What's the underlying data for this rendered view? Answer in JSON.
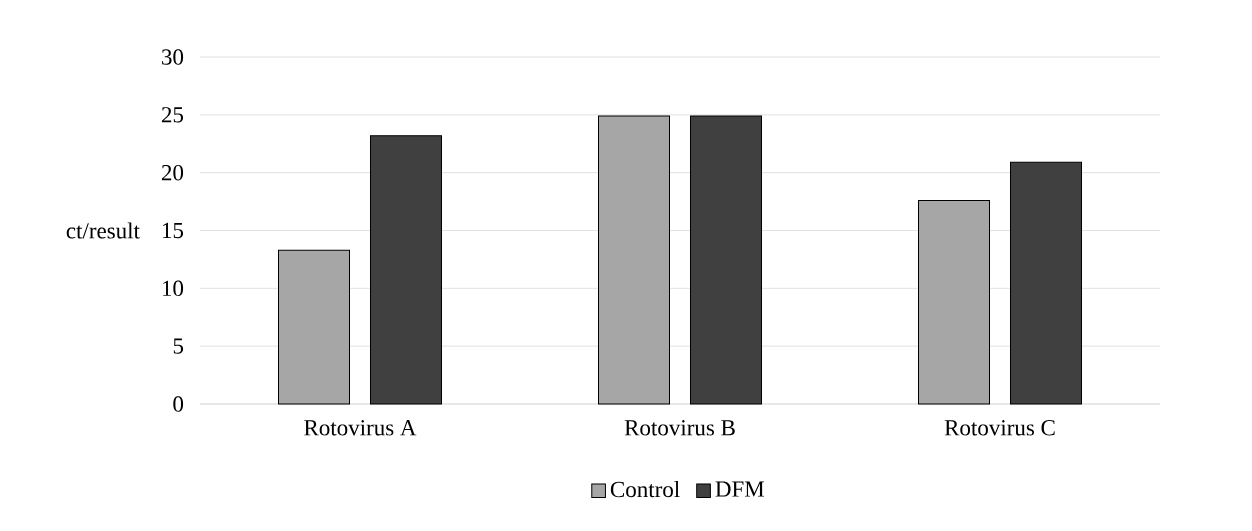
{
  "chart_data": {
    "type": "bar",
    "ylabel": "ct/result",
    "categories": [
      "Rotovirus A",
      "Rotovirus B",
      "Rotovirus C"
    ],
    "series": [
      {
        "name": "Control",
        "color": "#a6a6a6",
        "values": [
          13.3,
          24.9,
          17.6
        ]
      },
      {
        "name": "DFM",
        "color": "#404040",
        "values": [
          23.2,
          24.9,
          20.9
        ]
      }
    ],
    "ylim": [
      0,
      30
    ],
    "yticks": [
      0,
      5,
      10,
      15,
      20,
      25,
      30
    ],
    "grid": "y",
    "legend": "bottom"
  }
}
